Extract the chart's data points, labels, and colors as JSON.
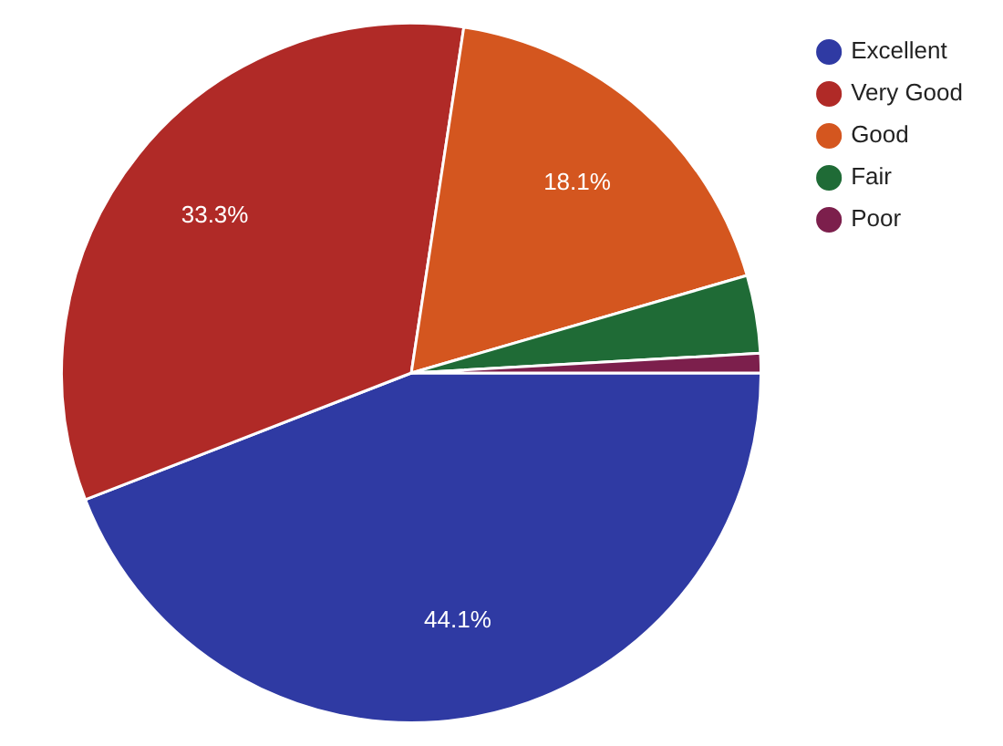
{
  "chart_data": {
    "type": "pie",
    "categories": [
      "Excellent",
      "Very Good",
      "Good",
      "Fair",
      "Poor"
    ],
    "values": [
      44.1,
      33.3,
      18.1,
      3.6,
      0.9
    ],
    "colors": [
      "#2f3aa3",
      "#b02a27",
      "#d4561f",
      "#1f6b36",
      "#7c1f4c"
    ],
    "value_labels": [
      "44.1%",
      "33.3%",
      "18.1%",
      null,
      null
    ],
    "legend": "top right"
  }
}
